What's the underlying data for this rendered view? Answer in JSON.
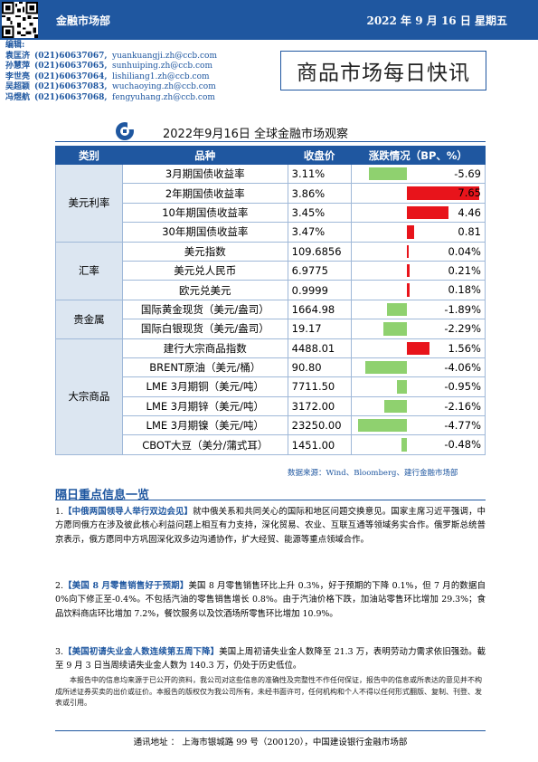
{
  "header": {
    "department": "金融市场部",
    "date": "2022 年 9 月 16 日  星期五"
  },
  "editors": {
    "label": "编辑:",
    "people": [
      {
        "name": "袁匡济",
        "phone": "(021)60637067,",
        "email": "yuankuangji.zh@ccb.com"
      },
      {
        "name": "孙慧萍",
        "phone": "(021)60637065,",
        "email": "sunhuiping.zh@ccb.com"
      },
      {
        "name": "李世亮",
        "phone": "(021)60637064,",
        "email": "lishiliang1.zh@ccb.com"
      },
      {
        "name": "吴超颖",
        "phone": "(021)60637083,",
        "email": "wuchaoying.zh@ccb.com"
      },
      {
        "name": "冯煜航",
        "phone": "(021)60637068,",
        "email": "fengyuhang.zh@ccb.com"
      }
    ]
  },
  "report_title": "商品市场每日快讯",
  "table": {
    "title": "2022年9月16日  全球金融市场观察",
    "headers": [
      "类别",
      "品种",
      "收盘价",
      "涨跌情况（BP、%）"
    ],
    "groups": [
      {
        "category": "美元利率",
        "rows": [
          {
            "name": "3月期国债收益率",
            "close": "3.11%",
            "change": "-5.69",
            "change_value": -5.69,
            "scale": 7.65
          },
          {
            "name": "2年期国债收益率",
            "close": "3.86%",
            "change": "7.65",
            "change_value": 7.65,
            "scale": 7.65
          },
          {
            "name": "10年期国债收益率",
            "close": "3.45%",
            "change": "4.46",
            "change_value": 4.46,
            "scale": 7.65
          },
          {
            "name": "30年期国债收益率",
            "close": "3.47%",
            "change": "0.81",
            "change_value": 0.81,
            "scale": 7.65
          }
        ]
      },
      {
        "category": "汇率",
        "rows": [
          {
            "name": "美元指数",
            "close": "109.6856",
            "change": "0.04%",
            "change_value": 0.04,
            "scale": 5
          },
          {
            "name": "美元兑人民币",
            "close": "6.9775",
            "change": "0.21%",
            "change_value": 0.21,
            "scale": 5
          },
          {
            "name": "欧元兑美元",
            "close": "0.9999",
            "change": "0.18%",
            "change_value": 0.18,
            "scale": 5
          }
        ]
      },
      {
        "category": "贵金属",
        "rows": [
          {
            "name": "国际黄金现货（美元/盎司）",
            "close": "1664.98",
            "change": "-1.89%",
            "change_value": -1.89,
            "scale": 5
          },
          {
            "name": "国际白银现货（美元/盎司）",
            "close": "19.17",
            "change": "-2.29%",
            "change_value": -2.29,
            "scale": 5
          }
        ]
      },
      {
        "category": "大宗商品",
        "rows": [
          {
            "name": "建行大宗商品指数",
            "close": "4488.01",
            "change": "1.56%",
            "change_value": 1.56,
            "scale": 5
          },
          {
            "name": "BRENT原油（美元/桶）",
            "close": "90.80",
            "change": "-4.06%",
            "change_value": -4.06,
            "scale": 5
          },
          {
            "name": "LME 3月期铜（美元/吨）",
            "close": "7711.50",
            "change": "-0.95%",
            "change_value": -0.95,
            "scale": 5
          },
          {
            "name": "LME 3月期锌（美元/吨）",
            "close": "3172.00",
            "change": "-2.16%",
            "change_value": -2.16,
            "scale": 5
          },
          {
            "name": "LME 3月期镍（美元/吨）",
            "close": "23250.00",
            "change": "-4.77%",
            "change_value": -4.77,
            "scale": 5
          },
          {
            "name": "CBOT大豆（美分/蒲式耳）",
            "close": "1451.00",
            "change": "-0.48%",
            "change_value": -0.48,
            "scale": 5
          }
        ]
      }
    ],
    "source": "数据来源：Wind、Bloomberg、建行金融市场部"
  },
  "section_title": "隔日重点信息一览",
  "news": [
    {
      "num": "1.",
      "headline": "【中俄两国领导人举行双边会见】",
      "body": "就中俄关系和共同关心的国际和地区问题交换意见。国家主席习近平强调，中方愿同俄方在涉及彼此核心利益问题上相互有力支持，深化贸易、农业、互联互通等领域务实合作。俄罗斯总统普京表示，俄方愿同中方巩固深化双多边沟通协作，扩大经贸、能源等重点领域合作。"
    },
    {
      "num": "2.",
      "headline": "【美国 8 月零售销售好于预期】",
      "body": "美国 8 月零售销售环比上升 0.3%，好于预期的下降 0.1%，但 7 月的数据自 0%向下修正至-0.4%。不包括汽油的零售销售增长 0.8%。由于汽油价格下跌，加油站零售环比增加 29.3%；食品饮料商店环比增加 7.2%，餐饮服务以及饮酒场所零售环比增加 10.9%。"
    },
    {
      "num": "3.",
      "headline": "【美国初请失业金人数连续第五周下降】",
      "body": "美国上周初请失业金人数降至 21.3 万，表明劳动力需求依旧强劲。截至 9 月 3 日当周续请失业金人数为 140.3 万，仍处于历史低位。"
    }
  ],
  "disclaimer": "本报告中的信息均来源于已公开的资料，我公司对这些信息的准确性及完整性不作任何保证，报告中的信息或所表达的意见并不构成所述证券买卖的出价或征价。本报告的版权仅为我公司所有，未经书面许可，任何机构和个人不得以任何形式翻版、复制、刊登、发表或引用。",
  "footer": "通讯地址 ： 上海市银城路 99 号（200120），中国建设银行金融市场部",
  "colors": {
    "brand": "#1f57a0",
    "up": "#e8141b",
    "down": "#8fd16f"
  }
}
